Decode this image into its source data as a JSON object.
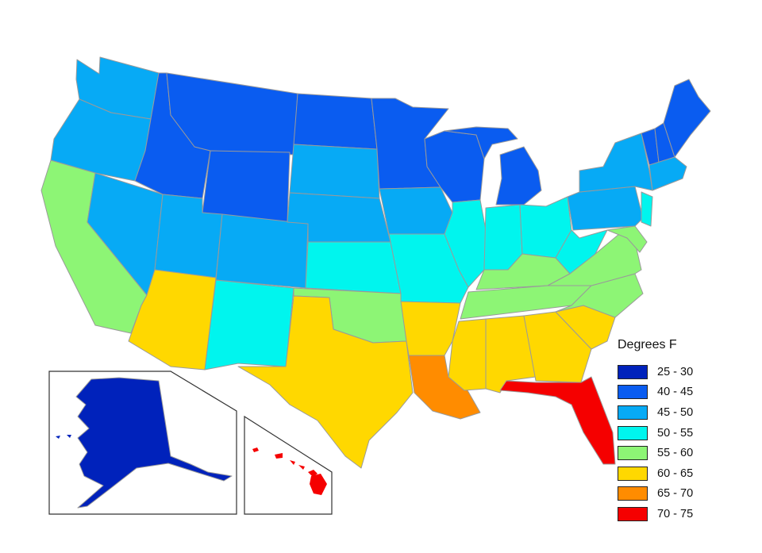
{
  "legend": {
    "title": "Degrees F",
    "items": [
      {
        "label": "25 - 30",
        "color": "#0022bb"
      },
      {
        "label": "40 - 45",
        "color": "#0a5cf0"
      },
      {
        "label": "45 - 50",
        "color": "#07aaf5"
      },
      {
        "label": "50 - 55",
        "color": "#00f5ee"
      },
      {
        "label": "55 - 60",
        "color": "#8df575"
      },
      {
        "label": "60 - 65",
        "color": "#ffd800"
      },
      {
        "label": "65 - 70",
        "color": "#ff8c00"
      },
      {
        "label": "70 - 75",
        "color": "#f50000"
      }
    ]
  },
  "colors": {
    "c25": "#0022bb",
    "c40": "#0a5cf0",
    "c45": "#07aaf5",
    "c50": "#00f5ee",
    "c55": "#8df575",
    "c60": "#ffd800",
    "c65": "#ff8c00",
    "c70": "#f50000"
  },
  "states": {
    "WA": "45 - 50",
    "OR": "45 - 50",
    "CA": "55 - 60",
    "ID": "40 - 45",
    "NV": "45 - 50",
    "MT": "40 - 45",
    "WY": "40 - 45",
    "UT": "45 - 50",
    "AZ": "60 - 65",
    "CO": "45 - 50",
    "NM": "50 - 55",
    "ND": "40 - 45",
    "SD": "45 - 50",
    "NE": "45 - 50",
    "KS": "50 - 55",
    "OK": "55 - 60",
    "TX": "60 - 65",
    "MN": "40 - 45",
    "IA": "45 - 50",
    "MO": "50 - 55",
    "AR": "60 - 65",
    "LA": "65 - 70",
    "WI": "40 - 45",
    "IL": "50 - 55",
    "MI": "40 - 45",
    "IN": "50 - 55",
    "OH": "50 - 55",
    "KY": "55 - 60",
    "TN": "55 - 60",
    "MS": "60 - 65",
    "AL": "60 - 65",
    "GA": "60 - 65",
    "FL": "70 - 75",
    "SC": "60 - 65",
    "NC": "55 - 60",
    "VA": "55 - 60",
    "WV": "50 - 55",
    "PA": "45 - 50",
    "NY": "45 - 50",
    "VT": "40 - 45",
    "NH": "40 - 45",
    "ME": "40 - 45",
    "MA": "45 - 50",
    "NJ": "50 - 55",
    "MD": "55 - 60",
    "AK": "25 - 30",
    "HI": "70 - 75"
  }
}
